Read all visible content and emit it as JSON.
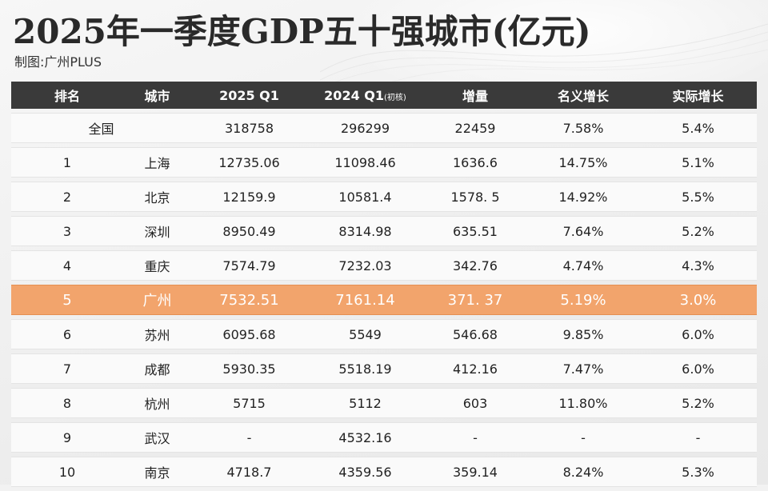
{
  "header": {
    "title": "2025年一季度GDP五十强城市(亿元)",
    "subtitle": "制图:广州PLUS"
  },
  "columns": [
    "排名",
    "城市",
    "2025 Q1",
    "2024 Q1",
    "(初核)",
    "增量",
    "名义增长",
    "实际增长"
  ],
  "total": {
    "label": "全国",
    "q1_2025": "318758",
    "q1_2024": "296299",
    "increase": "22459",
    "nominal": "7.58%",
    "real": "5.4%"
  },
  "rows": [
    {
      "rank": "1",
      "city": "上海",
      "q1_2025": "12735.06",
      "q1_2024": "11098.46",
      "increase": "1636.6",
      "nominal": "14.75%",
      "real": "5.1%"
    },
    {
      "rank": "2",
      "city": "北京",
      "q1_2025": "12159.9",
      "q1_2024": "10581.4",
      "increase": "1578. 5",
      "nominal": "14.92%",
      "real": "5.5%"
    },
    {
      "rank": "3",
      "city": "深圳",
      "q1_2025": "8950.49",
      "q1_2024": "8314.98",
      "increase": "635.51",
      "nominal": "7.64%",
      "real": "5.2%"
    },
    {
      "rank": "4",
      "city": "重庆",
      "q1_2025": "7574.79",
      "q1_2024": "7232.03",
      "increase": "342.76",
      "nominal": "4.74%",
      "real": "4.3%"
    },
    {
      "rank": "5",
      "city": "广州",
      "q1_2025": "7532.51",
      "q1_2024": "7161.14",
      "increase": "371. 37",
      "nominal": "5.19%",
      "real": "3.0%"
    },
    {
      "rank": "6",
      "city": "苏州",
      "q1_2025": "6095.68",
      "q1_2024": "5549",
      "increase": "546.68",
      "nominal": "9.85%",
      "real": "6.0%"
    },
    {
      "rank": "7",
      "city": "成都",
      "q1_2025": "5930.35",
      "q1_2024": "5518.19",
      "increase": "412.16",
      "nominal": "7.47%",
      "real": "6.0%"
    },
    {
      "rank": "8",
      "city": "杭州",
      "q1_2025": "5715",
      "q1_2024": "5112",
      "increase": "603",
      "nominal": "11.80%",
      "real": "5.2%"
    },
    {
      "rank": "9",
      "city": "武汉",
      "q1_2025": "-",
      "q1_2024": "4532.16",
      "increase": "-",
      "nominal": "-",
      "real": "-"
    },
    {
      "rank": "10",
      "city": "南京",
      "q1_2025": "4718.7",
      "q1_2024": "4359.56",
      "increase": "359.14",
      "nominal": "8.24%",
      "real": "5.3%"
    }
  ],
  "highlight_rank": "5",
  "colors": {
    "header_bg": "#3a3a3a",
    "highlight": "#f2a46c",
    "row_bg": "#fafafa"
  },
  "chart_data": {
    "type": "table",
    "title": "2025年一季度GDP五十强城市(亿元)",
    "columns": [
      "排名",
      "城市",
      "2025 Q1",
      "2024 Q1(初核)",
      "增量",
      "名义增长",
      "实际增长"
    ],
    "rows": [
      [
        "全国",
        "",
        318758,
        296299,
        22459,
        "7.58%",
        "5.4%"
      ],
      [
        "1",
        "上海",
        12735.06,
        11098.46,
        1636.6,
        "14.75%",
        "5.1%"
      ],
      [
        "2",
        "北京",
        12159.9,
        10581.4,
        1578.5,
        "14.92%",
        "5.5%"
      ],
      [
        "3",
        "深圳",
        8950.49,
        8314.98,
        635.51,
        "7.64%",
        "5.2%"
      ],
      [
        "4",
        "重庆",
        7574.79,
        7232.03,
        342.76,
        "4.74%",
        "4.3%"
      ],
      [
        "5",
        "广州",
        7532.51,
        7161.14,
        371.37,
        "5.19%",
        "3.0%"
      ],
      [
        "6",
        "苏州",
        6095.68,
        5549,
        546.68,
        "9.85%",
        "6.0%"
      ],
      [
        "7",
        "成都",
        5930.35,
        5518.19,
        412.16,
        "7.47%",
        "6.0%"
      ],
      [
        "8",
        "杭州",
        5715,
        5112,
        603,
        "11.80%",
        "5.2%"
      ],
      [
        "9",
        "武汉",
        "-",
        4532.16,
        "-",
        "-",
        "-"
      ],
      [
        "10",
        "南京",
        4718.7,
        4359.56,
        359.14,
        "8.24%",
        "5.3%"
      ]
    ]
  }
}
